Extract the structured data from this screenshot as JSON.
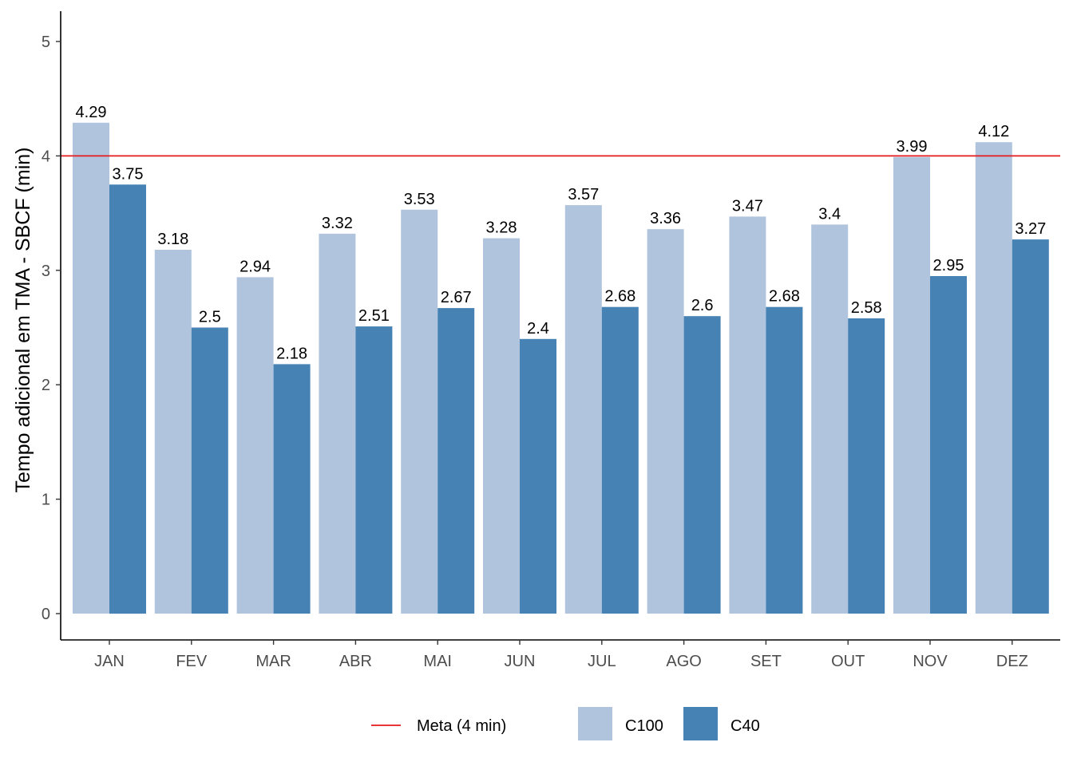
{
  "chart_data": {
    "type": "bar",
    "title": "",
    "xlabel": "",
    "ylabel": "Tempo adicional em TMA - SBCF (min)",
    "ylim": [
      0,
      5.25
    ],
    "yticks": [
      "0",
      "1",
      "2",
      "3",
      "4",
      "5"
    ],
    "categories": [
      "JAN",
      "FEV",
      "MAR",
      "ABR",
      "MAI",
      "JUN",
      "JUL",
      "AGO",
      "SET",
      "OUT",
      "NOV",
      "DEZ"
    ],
    "series": [
      {
        "name": "C100",
        "color": "#b0c4de",
        "values": [
          4.29,
          3.18,
          2.94,
          3.32,
          3.53,
          3.28,
          3.57,
          3.36,
          3.47,
          3.4,
          3.99,
          4.12
        ],
        "labels": [
          "4.29",
          "3.18",
          "2.94",
          "3.32",
          "3.53",
          "3.28",
          "3.57",
          "3.36",
          "3.47",
          "3.4",
          "3.99",
          "4.12"
        ]
      },
      {
        "name": "C40",
        "color": "#4682b4",
        "values": [
          3.75,
          2.5,
          2.18,
          2.51,
          2.67,
          2.4,
          2.68,
          2.6,
          2.68,
          2.58,
          2.95,
          3.27
        ],
        "labels": [
          "3.75",
          "2.5",
          "2.18",
          "2.51",
          "2.67",
          "2.4",
          "2.68",
          "2.6",
          "2.68",
          "2.58",
          "2.95",
          "3.27"
        ]
      }
    ],
    "reference_line": {
      "name": "Meta (4 min)",
      "value": 4,
      "color": "#e41a1c"
    },
    "grid": false,
    "legend_position": "bottom"
  }
}
